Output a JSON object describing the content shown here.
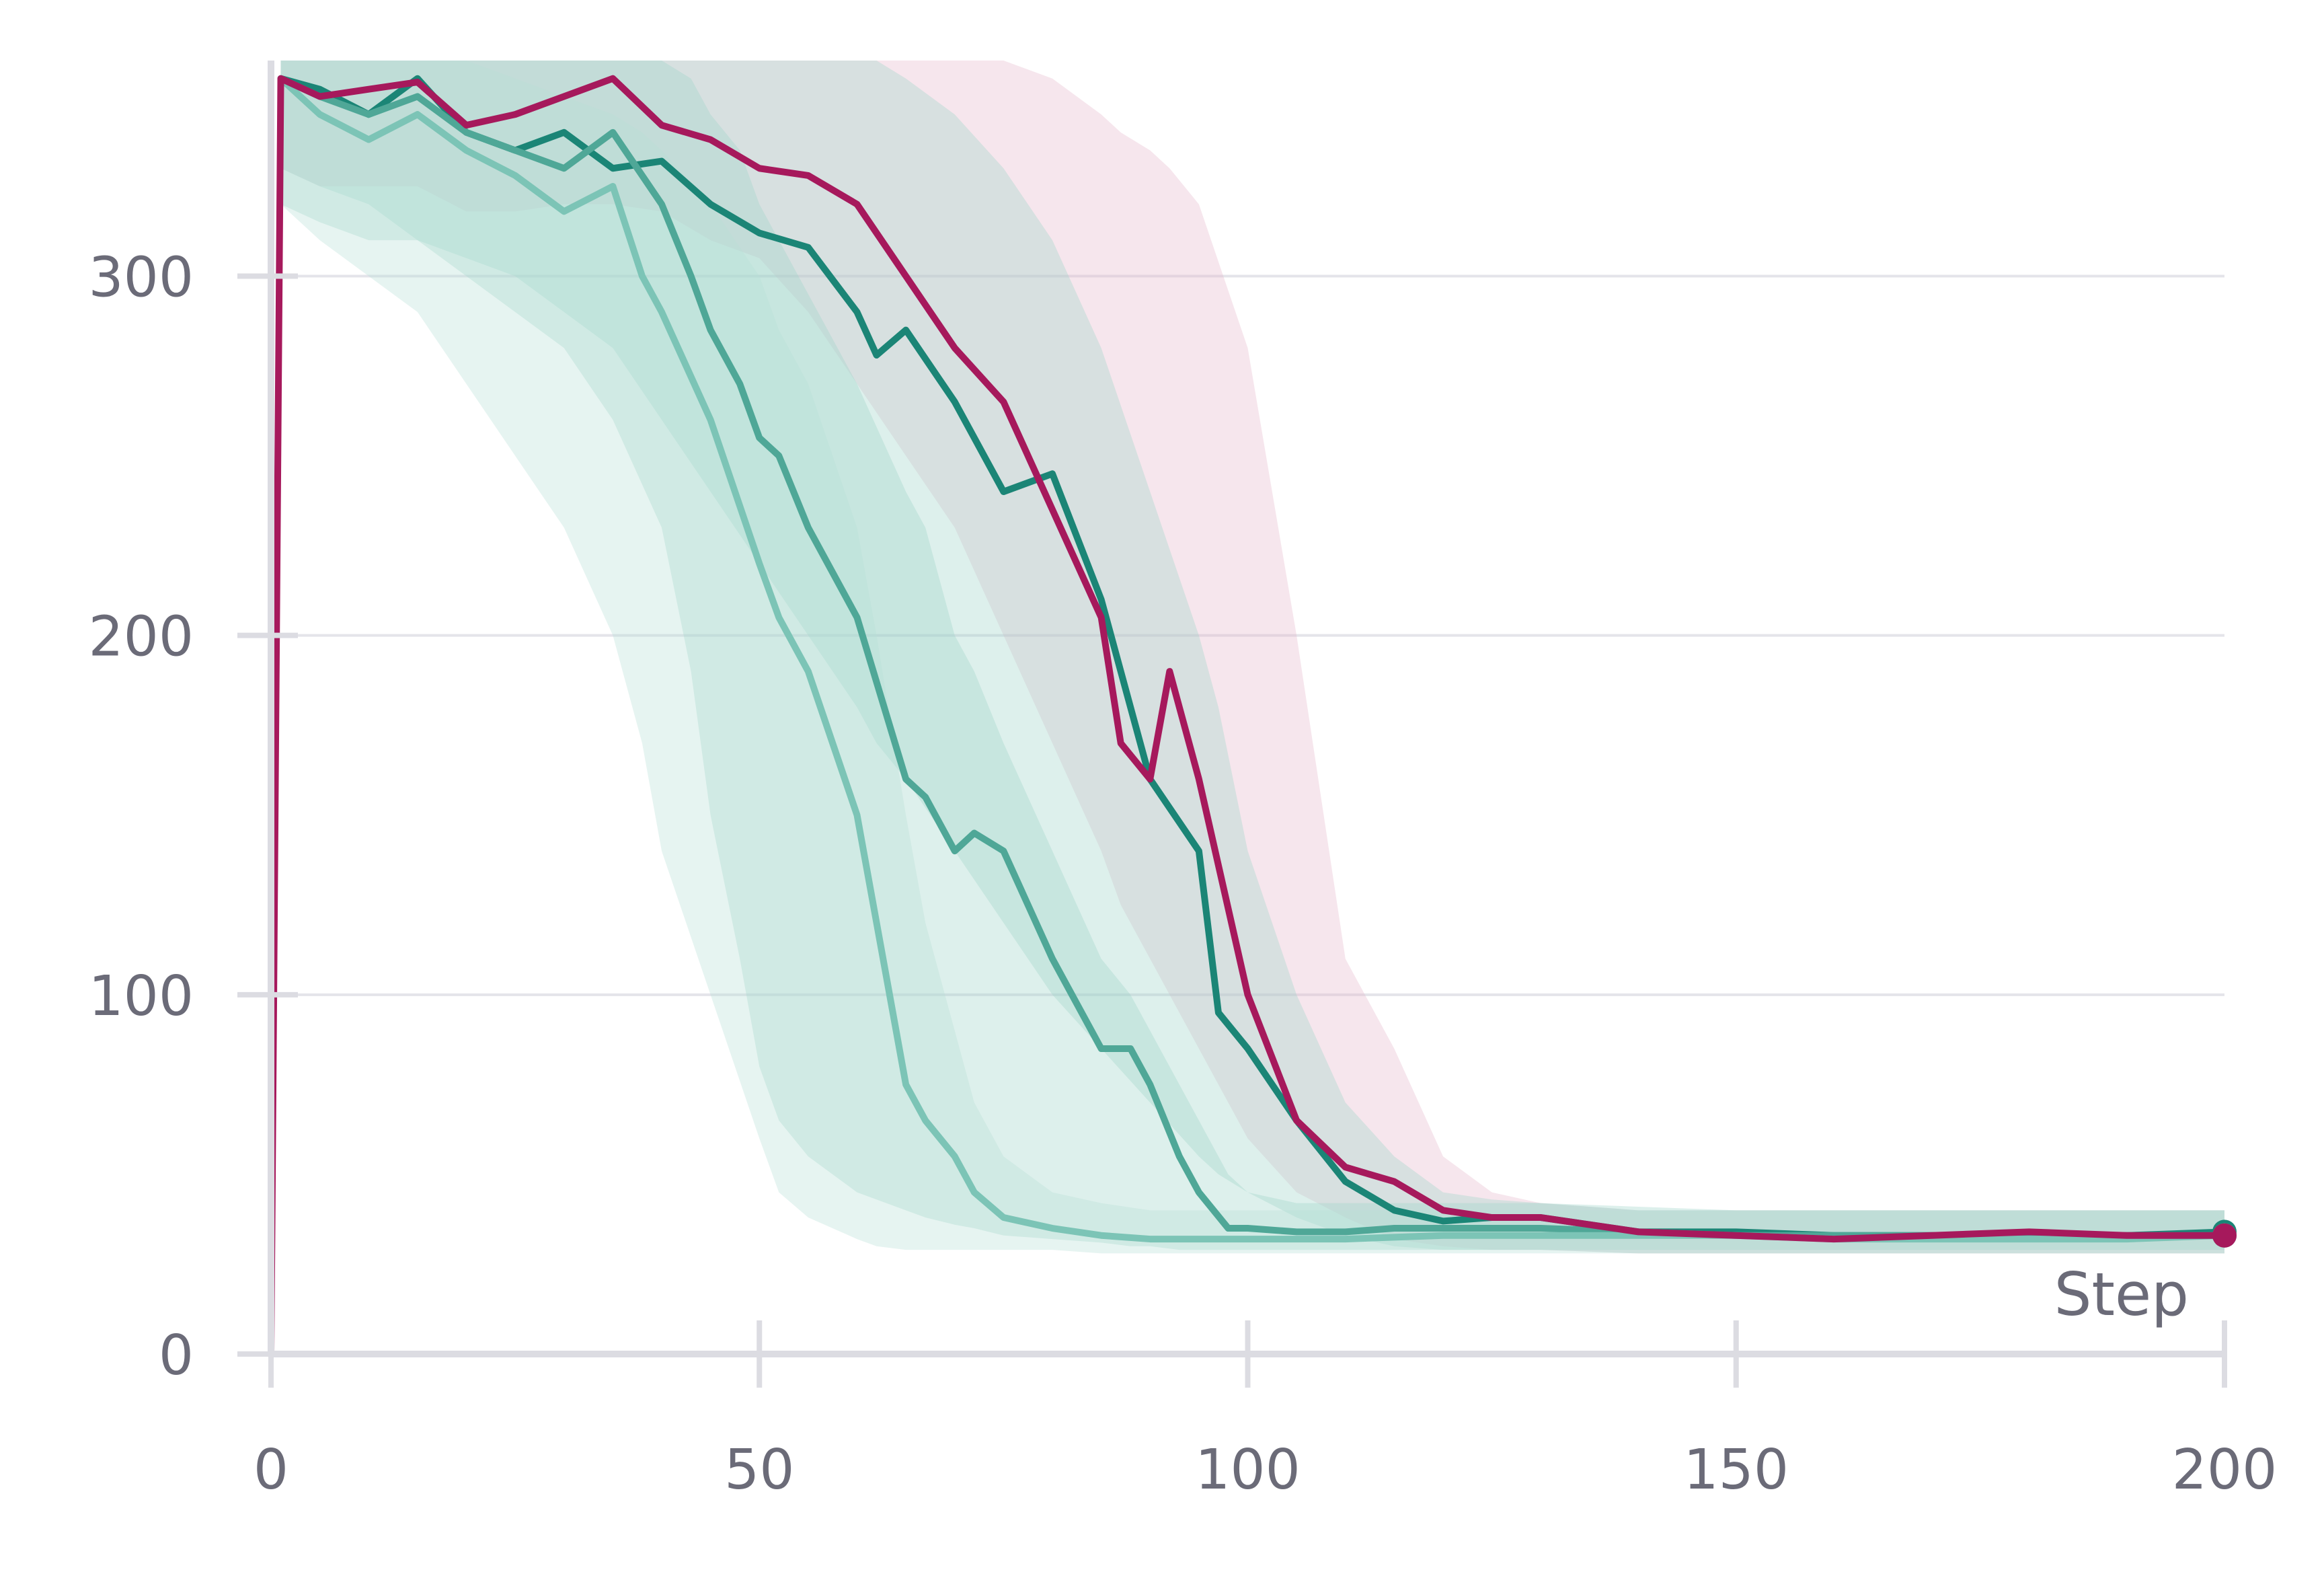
{
  "chart_data": {
    "type": "line",
    "title": "",
    "xlabel": "Step",
    "ylabel": "",
    "xlim": [
      0,
      200
    ],
    "ylim": [
      0,
      360
    ],
    "xticks": [
      0,
      50,
      100,
      150,
      200
    ],
    "yticks": [
      0,
      100,
      200,
      300
    ],
    "xtick_labels": [
      "0",
      "50",
      "100",
      "150",
      "200"
    ],
    "ytick_labels": [
      "0",
      "100",
      "200",
      "300"
    ],
    "grid": true,
    "legend": "none",
    "series": [
      {
        "color": "#a6195c",
        "band_color": "#e6b8cc",
        "x": [
          0,
          1,
          5,
          10,
          15,
          20,
          25,
          30,
          35,
          40,
          45,
          50,
          55,
          60,
          65,
          70,
          75,
          80,
          85,
          87,
          90,
          92,
          95,
          100,
          105,
          110,
          115,
          120,
          125,
          130,
          140,
          150,
          160,
          170,
          180,
          190,
          200
        ],
        "values": [
          0,
          355,
          350,
          352,
          354,
          342,
          345,
          350,
          355,
          342,
          338,
          330,
          328,
          320,
          300,
          280,
          265,
          235,
          205,
          170,
          160,
          190,
          160,
          100,
          65,
          52,
          48,
          40,
          38,
          38,
          34,
          33,
          32,
          33,
          34,
          33,
          33
        ],
        "band_low": [
          0,
          330,
          325,
          325,
          325,
          318,
          318,
          320,
          320,
          318,
          310,
          305,
          290,
          270,
          250,
          230,
          200,
          170,
          140,
          125,
          110,
          100,
          85,
          60,
          45,
          38,
          32,
          30,
          29,
          29,
          28,
          28,
          28,
          28,
          28,
          28,
          28
        ],
        "band_high": [
          0,
          360,
          360,
          360,
          360,
          360,
          360,
          360,
          360,
          360,
          360,
          360,
          360,
          360,
          360,
          360,
          360,
          355,
          345,
          340,
          335,
          330,
          320,
          280,
          200,
          110,
          85,
          55,
          45,
          42,
          40,
          40,
          40,
          40,
          40,
          40,
          40
        ]
      },
      {
        "color": "#1b8576",
        "band_color": "#9ed3c8",
        "x": [
          1,
          5,
          10,
          15,
          20,
          25,
          30,
          35,
          40,
          45,
          50,
          55,
          60,
          62,
          65,
          70,
          75,
          80,
          85,
          90,
          95,
          97,
          100,
          105,
          110,
          115,
          120,
          125,
          130,
          140,
          150,
          160,
          170,
          180,
          190,
          200
        ],
        "values": [
          355,
          352,
          345,
          355,
          340,
          335,
          340,
          330,
          332,
          320,
          312,
          308,
          290,
          278,
          285,
          265,
          240,
          245,
          210,
          160,
          140,
          95,
          85,
          65,
          48,
          40,
          37,
          38,
          38,
          34,
          34,
          33,
          33,
          33,
          33,
          34
        ],
        "band_low": [
          320,
          315,
          310,
          310,
          305,
          300,
          290,
          280,
          260,
          240,
          220,
          200,
          180,
          170,
          160,
          140,
          120,
          100,
          85,
          70,
          55,
          50,
          45,
          38,
          33,
          30,
          29,
          29,
          29,
          28,
          28,
          28,
          28,
          28,
          28,
          28
        ],
        "band_high": [
          360,
          360,
          360,
          360,
          360,
          360,
          360,
          360,
          360,
          360,
          360,
          360,
          360,
          360,
          355,
          345,
          330,
          310,
          280,
          240,
          200,
          180,
          140,
          100,
          70,
          55,
          45,
          43,
          42,
          40,
          40,
          40,
          40,
          40,
          40,
          40
        ]
      },
      {
        "color": "#4fa797",
        "band_color": "#9ed3c8",
        "x": [
          1,
          5,
          10,
          15,
          20,
          25,
          30,
          35,
          40,
          43,
          45,
          48,
          50,
          52,
          55,
          60,
          65,
          67,
          70,
          72,
          75,
          80,
          85,
          88,
          90,
          93,
          95,
          98,
          100,
          105,
          110,
          115,
          120,
          130,
          140,
          150,
          160,
          170,
          180,
          190,
          200
        ],
        "values": [
          355,
          350,
          345,
          350,
          340,
          335,
          330,
          340,
          320,
          300,
          285,
          270,
          255,
          250,
          230,
          205,
          160,
          155,
          140,
          145,
          140,
          110,
          85,
          85,
          75,
          55,
          45,
          35,
          35,
          34,
          34,
          35,
          35,
          35,
          34,
          33,
          33,
          33,
          33,
          33,
          33
        ],
        "band_low": [
          330,
          325,
          320,
          310,
          300,
          290,
          280,
          260,
          230,
          190,
          150,
          110,
          80,
          65,
          55,
          45,
          40,
          38,
          36,
          35,
          33,
          32,
          31,
          30,
          30,
          29,
          29,
          29,
          29,
          29,
          29,
          29,
          29,
          29,
          29,
          29,
          29,
          29,
          29,
          29,
          29
        ],
        "band_high": [
          360,
          360,
          360,
          360,
          360,
          360,
          360,
          360,
          360,
          355,
          345,
          335,
          320,
          310,
          295,
          270,
          240,
          230,
          200,
          190,
          170,
          140,
          110,
          100,
          90,
          75,
          65,
          50,
          45,
          42,
          42,
          42,
          42,
          42,
          41,
          40,
          40,
          40,
          40,
          40,
          40
        ]
      },
      {
        "color": "#7cc4b6",
        "band_color": "#b6e0d8",
        "x": [
          1,
          5,
          10,
          15,
          20,
          25,
          30,
          35,
          38,
          40,
          45,
          50,
          52,
          55,
          60,
          62,
          65,
          67,
          70,
          72,
          75,
          80,
          85,
          90,
          95,
          100,
          110,
          120,
          130,
          140,
          150,
          160,
          170,
          180,
          190,
          200
        ],
        "values": [
          355,
          345,
          338,
          345,
          335,
          328,
          318,
          325,
          300,
          290,
          260,
          220,
          205,
          190,
          150,
          120,
          75,
          65,
          55,
          45,
          38,
          35,
          33,
          32,
          32,
          32,
          32,
          33,
          33,
          33,
          33,
          32,
          32,
          32,
          32,
          33
        ],
        "band_low": [
          320,
          310,
          300,
          290,
          270,
          250,
          230,
          200,
          170,
          140,
          100,
          60,
          45,
          38,
          32,
          30,
          29,
          29,
          29,
          29,
          29,
          29,
          28,
          28,
          28,
          28,
          28,
          28,
          28,
          28,
          28,
          28,
          28,
          28,
          28,
          28
        ],
        "band_high": [
          360,
          360,
          360,
          360,
          360,
          355,
          350,
          345,
          340,
          335,
          320,
          300,
          285,
          270,
          230,
          200,
          150,
          120,
          90,
          70,
          55,
          45,
          42,
          40,
          40,
          40,
          40,
          40,
          40,
          40,
          40,
          40,
          40,
          40,
          40,
          40
        ]
      }
    ]
  }
}
